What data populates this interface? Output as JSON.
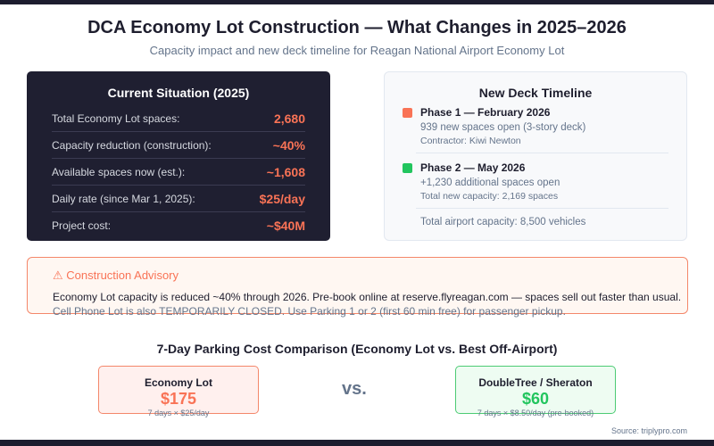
{
  "title": "DCA Economy Lot Construction — What Changes in 2025–2026",
  "subtitle": "Capacity impact and new deck timeline for Reagan National Airport Economy Lot",
  "current": {
    "heading": "Current Situation (2025)",
    "rows": [
      {
        "label": "Total Economy Lot spaces:",
        "value": "2,680"
      },
      {
        "label": "Capacity reduction (construction):",
        "value": "~40%"
      },
      {
        "label": "Available spaces now (est.):",
        "value": "~1,608"
      },
      {
        "label": "Daily rate (since Mar 1, 2025):",
        "value": "$25/day"
      },
      {
        "label": "Project cost:",
        "value": "~$40M"
      }
    ]
  },
  "timeline": {
    "heading": "New Deck Timeline",
    "phase1": {
      "title": "Phase 1 — February 2026",
      "line1": "939 new spaces open (3-story deck)",
      "line2": "Contractor: Kiwi Newton",
      "color": "#f97356"
    },
    "phase2": {
      "title": "Phase 2 — May 2026",
      "line1": "+1,230 additional spaces open",
      "line2": "Total new capacity: 2,169 spaces",
      "color": "#22c55e"
    },
    "total": "Total airport capacity: 8,500 vehicles"
  },
  "advisory": {
    "icon": "warning-icon",
    "icon_glyph": "⚠",
    "heading": "Construction Advisory",
    "line1": "Economy Lot capacity is reduced ~40% through 2026. Pre-book online at reserve.flyreagan.com — spaces sell out faster than usual.",
    "line2": "Cell Phone Lot is also TEMPORARILY CLOSED. Use Parking 1 or 2 (first 60 min free) for passenger pickup."
  },
  "comparison": {
    "heading": "7-Day Parking Cost Comparison (Economy Lot vs. Best Off-Airport)",
    "left": {
      "name": "Economy Lot",
      "price": "$175",
      "detail": "7 days × $25/day"
    },
    "vs": "vs.",
    "right": {
      "name": "DoubleTree / Sheraton",
      "price": "$60",
      "detail": "7 days × $8.50/day (pre-booked)"
    }
  },
  "source": "Source: triplypro.com"
}
